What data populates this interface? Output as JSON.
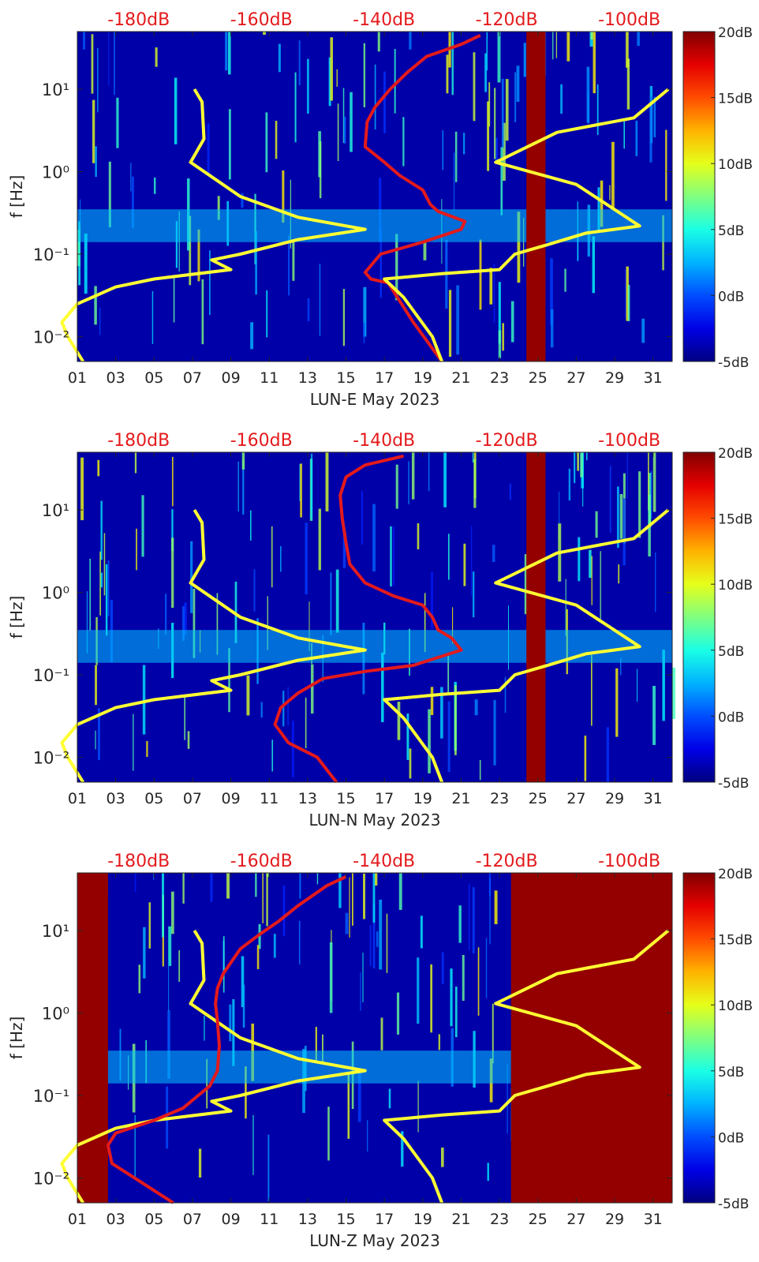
{
  "colors": {
    "min_curve": "#ffff33",
    "median_curve": "#e41a1c",
    "top_axis_text": "#e41a1c",
    "colormap": "jet"
  },
  "top_axis_labels": [
    "-180dB",
    "-160dB",
    "-140dB",
    "-120dB",
    "-100dB"
  ],
  "colorbar_labels": [
    "20dB",
    "15dB",
    "10dB",
    "5dB",
    "0dB",
    "-5dB"
  ],
  "colorbar_ticks_db": [
    20,
    15,
    10,
    5,
    0,
    -5
  ],
  "x_tick_labels": [
    "01",
    "03",
    "05",
    "07",
    "09",
    "11",
    "13",
    "15",
    "17",
    "19",
    "21",
    "23",
    "25",
    "27",
    "29",
    "31"
  ],
  "y_tick_labels": [
    "10⁻²",
    "10⁻¹",
    "10⁰",
    "10¹"
  ],
  "ylabel": "f [Hz]",
  "chart_data": [
    {
      "type": "heatmap",
      "xlabel": "LUN-E May 2023",
      "ylabel": "f [Hz]",
      "xlim_day": [
        1,
        32
      ],
      "ylim_hz": [
        0.005,
        50
      ],
      "ylog": true,
      "colorbar_range_db": [
        -5,
        20
      ],
      "top_axis_db_range": [
        -190,
        -93
      ],
      "saturated_day_spans": [
        [
          24.4,
          25.4
        ]
      ],
      "series": [
        {
          "points": [
            [
              7.1,
              10
            ],
            [
              7.5,
              7
            ],
            [
              7.6,
              2.5
            ],
            [
              6.9,
              1.3
            ],
            [
              9.5,
              0.5
            ],
            [
              12.5,
              0.28
            ],
            [
              16,
              0.2
            ],
            [
              12.5,
              0.15
            ],
            [
              9.5,
              0.1
            ],
            [
              8,
              0.085
            ],
            [
              9,
              0.065
            ],
            [
              5,
              0.05
            ],
            [
              3,
              0.04
            ],
            [
              1,
              0.025
            ],
            [
              0.2,
              0.015
            ],
            [
              0.5,
              0.01
            ],
            [
              1.3,
              0.005
            ]
          ]
        },
        {
          "points": [
            [
              20,
              0.005
            ],
            [
              18.5,
              0.015
            ],
            [
              17.2,
              0.045
            ],
            [
              16.8,
              0.047
            ],
            [
              16.3,
              0.05
            ],
            [
              16,
              0.06
            ],
            [
              16.8,
              0.1
            ],
            [
              19,
              0.14
            ],
            [
              21,
              0.2
            ],
            [
              21.2,
              0.25
            ],
            [
              19.8,
              0.33
            ],
            [
              19.4,
              0.4
            ],
            [
              19,
              0.6
            ],
            [
              17.8,
              0.9
            ],
            [
              17,
              1.3
            ],
            [
              16,
              2
            ],
            [
              16.1,
              4
            ],
            [
              16.5,
              6
            ],
            [
              17.3,
              10
            ],
            [
              18.2,
              16
            ],
            [
              19.2,
              25
            ],
            [
              21,
              35
            ],
            [
              22,
              45
            ]
          ]
        },
        {
          "points": [
            [
              31.8,
              10
            ],
            [
              30,
              4.5
            ],
            [
              26,
              3
            ],
            [
              22.8,
              1.3
            ],
            [
              27,
              0.7
            ],
            [
              30.3,
              0.22
            ],
            [
              27.5,
              0.18
            ],
            [
              25.5,
              0.13
            ],
            [
              23.8,
              0.1
            ],
            [
              23,
              0.065
            ],
            [
              20,
              0.058
            ],
            [
              17,
              0.05
            ],
            [
              18,
              0.03
            ],
            [
              19.5,
              0.01
            ],
            [
              20,
              0.005
            ]
          ]
        }
      ]
    },
    {
      "type": "heatmap",
      "xlabel": "LUN-N May 2023",
      "ylabel": "f [Hz]",
      "xlim_day": [
        1,
        32
      ],
      "ylim_hz": [
        0.005,
        50
      ],
      "ylog": true,
      "colorbar_range_db": [
        -5,
        20
      ],
      "top_axis_db_range": [
        -190,
        -93
      ],
      "saturated_day_spans": [
        [
          24.4,
          25.4
        ]
      ],
      "series": [
        {
          "points": [
            [
              7.1,
              10
            ],
            [
              7.5,
              7
            ],
            [
              7.6,
              2.5
            ],
            [
              6.9,
              1.3
            ],
            [
              9.5,
              0.5
            ],
            [
              12.5,
              0.28
            ],
            [
              16,
              0.2
            ],
            [
              12.5,
              0.15
            ],
            [
              9.5,
              0.1
            ],
            [
              8,
              0.085
            ],
            [
              9,
              0.065
            ],
            [
              5,
              0.05
            ],
            [
              3,
              0.04
            ],
            [
              1,
              0.025
            ],
            [
              0.2,
              0.015
            ],
            [
              0.5,
              0.01
            ],
            [
              1.3,
              0.005
            ]
          ]
        },
        {
          "points": [
            [
              14.5,
              0.005
            ],
            [
              13.5,
              0.01
            ],
            [
              12,
              0.015
            ],
            [
              11.3,
              0.025
            ],
            [
              11.6,
              0.04
            ],
            [
              12.5,
              0.06
            ],
            [
              13.8,
              0.09
            ],
            [
              16,
              0.11
            ],
            [
              18.5,
              0.13
            ],
            [
              21,
              0.2
            ],
            [
              20.5,
              0.28
            ],
            [
              19.8,
              0.35
            ],
            [
              19.5,
              0.5
            ],
            [
              19,
              0.7
            ],
            [
              17.5,
              0.9
            ],
            [
              16,
              1.3
            ],
            [
              15.2,
              2.2
            ],
            [
              15,
              4
            ],
            [
              14.8,
              8
            ],
            [
              14.7,
              15
            ],
            [
              15,
              25
            ],
            [
              16,
              35
            ],
            [
              18,
              45
            ]
          ]
        },
        {
          "points": [
            [
              31.8,
              10
            ],
            [
              30,
              4.5
            ],
            [
              26,
              3
            ],
            [
              22.8,
              1.3
            ],
            [
              27,
              0.7
            ],
            [
              30.3,
              0.22
            ],
            [
              27.5,
              0.18
            ],
            [
              25.5,
              0.13
            ],
            [
              23.8,
              0.1
            ],
            [
              23,
              0.065
            ],
            [
              20,
              0.058
            ],
            [
              17,
              0.05
            ],
            [
              18,
              0.03
            ],
            [
              19.5,
              0.01
            ],
            [
              20,
              0.005
            ]
          ]
        }
      ]
    },
    {
      "type": "heatmap",
      "xlabel": "LUN-Z May 2023",
      "ylabel": "f [Hz]",
      "xlim_day": [
        1,
        32
      ],
      "ylim_hz": [
        0.005,
        50
      ],
      "ylog": true,
      "colorbar_range_db": [
        -5,
        20
      ],
      "top_axis_db_range": [
        -190,
        -93
      ],
      "saturated_day_spans": [
        [
          1,
          2.6
        ],
        [
          23.6,
          32
        ]
      ],
      "series": [
        {
          "points": [
            [
              7.1,
              10
            ],
            [
              7.5,
              7
            ],
            [
              7.6,
              2.5
            ],
            [
              6.9,
              1.3
            ],
            [
              9.5,
              0.5
            ],
            [
              12.5,
              0.28
            ],
            [
              16,
              0.2
            ],
            [
              12.5,
              0.15
            ],
            [
              9.5,
              0.1
            ],
            [
              8,
              0.085
            ],
            [
              9,
              0.065
            ],
            [
              5,
              0.05
            ],
            [
              3,
              0.04
            ],
            [
              1,
              0.025
            ],
            [
              0.2,
              0.015
            ],
            [
              0.5,
              0.01
            ],
            [
              1.3,
              0.005
            ]
          ]
        },
        {
          "points": [
            [
              6,
              0.005
            ],
            [
              2.8,
              0.015
            ],
            [
              2.6,
              0.025
            ],
            [
              3,
              0.035
            ],
            [
              5,
              0.05
            ],
            [
              6.5,
              0.07
            ],
            [
              7.3,
              0.1
            ],
            [
              7.9,
              0.13
            ],
            [
              8.3,
              0.2
            ],
            [
              8.4,
              0.4
            ],
            [
              8.3,
              0.8
            ],
            [
              8.2,
              1.3
            ],
            [
              8.3,
              2
            ],
            [
              8.6,
              3
            ],
            [
              9.5,
              6
            ],
            [
              10.5,
              9
            ],
            [
              11.5,
              13
            ],
            [
              12.5,
              20
            ],
            [
              14,
              35
            ],
            [
              15,
              45
            ]
          ]
        },
        {
          "points": [
            [
              31.8,
              10
            ],
            [
              30,
              4.5
            ],
            [
              26,
              3
            ],
            [
              22.8,
              1.3
            ],
            [
              27,
              0.7
            ],
            [
              30.3,
              0.22
            ],
            [
              27.5,
              0.18
            ],
            [
              25.5,
              0.13
            ],
            [
              23.8,
              0.1
            ],
            [
              23,
              0.065
            ],
            [
              20,
              0.058
            ],
            [
              17,
              0.05
            ],
            [
              18,
              0.03
            ],
            [
              19.5,
              0.01
            ],
            [
              20,
              0.005
            ]
          ]
        }
      ]
    }
  ]
}
